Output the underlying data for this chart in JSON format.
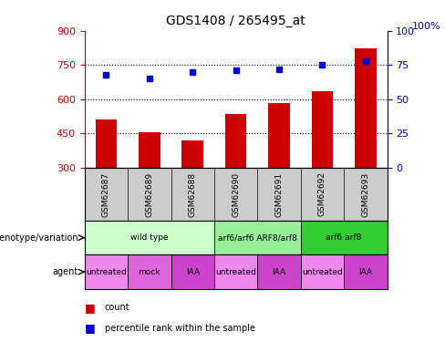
{
  "title": "GDS1408 / 265495_at",
  "samples": [
    "GSM62687",
    "GSM62689",
    "GSM62688",
    "GSM62690",
    "GSM62691",
    "GSM62692",
    "GSM62693"
  ],
  "counts": [
    510,
    455,
    420,
    535,
    585,
    635,
    825
  ],
  "percentiles": [
    68,
    65,
    70,
    71,
    72,
    75,
    78
  ],
  "ylim_left": [
    300,
    900
  ],
  "yticks_left": [
    300,
    450,
    600,
    750,
    900
  ],
  "ylim_right": [
    0,
    100
  ],
  "yticks_right": [
    0,
    25,
    50,
    75,
    100
  ],
  "hlines": [
    450,
    600,
    750
  ],
  "bar_color": "#cc0000",
  "dot_color": "#0000cc",
  "background_color": "#ffffff",
  "sample_box_color": "#cccccc",
  "genotype_groups": [
    {
      "label": "wild type",
      "span": [
        0,
        3
      ],
      "color": "#ccffcc"
    },
    {
      "label": "arf6/arf6 ARF8/arf8",
      "span": [
        3,
        5
      ],
      "color": "#99ee99"
    },
    {
      "label": "arf6 arf8",
      "span": [
        5,
        7
      ],
      "color": "#33cc33"
    }
  ],
  "agent_groups": [
    {
      "label": "untreated",
      "span": [
        0,
        1
      ],
      "color": "#ee88ee"
    },
    {
      "label": "mock",
      "span": [
        1,
        2
      ],
      "color": "#dd66dd"
    },
    {
      "label": "IAA",
      "span": [
        2,
        3
      ],
      "color": "#cc44cc"
    },
    {
      "label": "untreated",
      "span": [
        3,
        4
      ],
      "color": "#ee88ee"
    },
    {
      "label": "IAA",
      "span": [
        4,
        5
      ],
      "color": "#cc44cc"
    },
    {
      "label": "untreated",
      "span": [
        5,
        6
      ],
      "color": "#ee88ee"
    },
    {
      "label": "IAA",
      "span": [
        6,
        7
      ],
      "color": "#cc44cc"
    }
  ],
  "legend_count_color": "#cc0000",
  "legend_pct_color": "#0000cc",
  "left_label_genotype": "genotype/variation",
  "left_label_agent": "agent",
  "right_axis_label": "100%"
}
